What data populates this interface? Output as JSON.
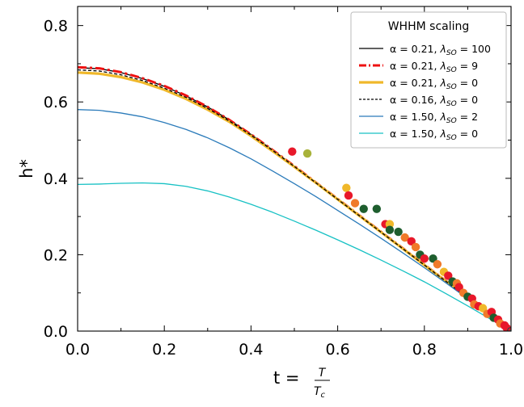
{
  "chart_data": {
    "type": "line",
    "xlabel": "t = ",
    "xlabel_fraction": {
      "numerator": "T",
      "denominator": "T",
      "denominator_subscript": "c"
    },
    "ylabel": "h*",
    "xlim": [
      0.0,
      1.0
    ],
    "ylim": [
      0.0,
      0.85
    ],
    "x_ticks": [
      0.0,
      0.2,
      0.4,
      0.6,
      0.8,
      1.0
    ],
    "x_tick_labels": [
      "0.0",
      "0.2",
      "0.4",
      "0.6",
      "0.8",
      "1.0"
    ],
    "y_ticks": [
      0.0,
      0.2,
      0.4,
      0.6,
      0.8
    ],
    "y_tick_labels": [
      "0.0",
      "0.2",
      "0.4",
      "0.6",
      "0.8"
    ],
    "grid": false,
    "legend": {
      "title": "WHHM scaling",
      "placement": "top-right"
    },
    "series": [
      {
        "name": "α = 0.21, λ_SO = 100",
        "alpha_text": "α = 0.21, ",
        "lambda_text": "λ",
        "sub_text": "SO",
        "value_text": " = 100",
        "color": "#000000",
        "style": "solid",
        "x": [
          0.0,
          0.05,
          0.1,
          0.15,
          0.2,
          0.25,
          0.3,
          0.35,
          0.4,
          0.45,
          0.5,
          0.55,
          0.6,
          0.65,
          0.7,
          0.75,
          0.8,
          0.85,
          0.9,
          0.95,
          1.0
        ],
        "y": [
          0.69,
          0.687,
          0.677,
          0.661,
          0.641,
          0.616,
          0.587,
          0.553,
          0.515,
          0.474,
          0.432,
          0.389,
          0.346,
          0.303,
          0.26,
          0.217,
          0.174,
          0.131,
          0.088,
          0.044,
          0.0
        ]
      },
      {
        "name": "α = 0.21, λ_SO = 9",
        "alpha_text": "α = 0.21, ",
        "lambda_text": "λ",
        "sub_text": "SO",
        "value_text": " = 9",
        "color": "#ee1111",
        "style": "dashdot",
        "x": [
          0.0,
          0.05,
          0.1,
          0.15,
          0.2,
          0.25,
          0.3,
          0.35,
          0.4,
          0.45,
          0.5,
          0.55,
          0.6,
          0.65,
          0.7,
          0.75,
          0.8,
          0.85,
          0.9,
          0.95,
          1.0
        ],
        "y": [
          0.691,
          0.688,
          0.678,
          0.662,
          0.642,
          0.617,
          0.587,
          0.553,
          0.515,
          0.474,
          0.432,
          0.389,
          0.346,
          0.303,
          0.26,
          0.217,
          0.174,
          0.131,
          0.088,
          0.044,
          0.0
        ]
      },
      {
        "name": "α = 0.21, λ_SO = 0",
        "alpha_text": "α = 0.21, ",
        "lambda_text": "λ",
        "sub_text": "SO",
        "value_text": " = 0",
        "color": "#f0b82a",
        "style": "thick",
        "x": [
          0.0,
          0.05,
          0.1,
          0.15,
          0.2,
          0.25,
          0.3,
          0.35,
          0.4,
          0.45,
          0.5,
          0.55,
          0.6,
          0.65,
          0.7,
          0.75,
          0.8,
          0.85,
          0.9,
          0.95,
          1.0
        ],
        "y": [
          0.677,
          0.674,
          0.665,
          0.651,
          0.632,
          0.608,
          0.58,
          0.548,
          0.511,
          0.471,
          0.43,
          0.388,
          0.345,
          0.302,
          0.259,
          0.216,
          0.173,
          0.13,
          0.087,
          0.044,
          0.0
        ]
      },
      {
        "name": "α = 0.16, λ_SO = 0",
        "alpha_text": "α = 0.16, ",
        "lambda_text": "λ",
        "sub_text": "SO",
        "value_text": " = 0",
        "color": "#000000",
        "style": "dashed",
        "x": [
          0.0,
          0.05,
          0.1,
          0.15,
          0.2,
          0.25,
          0.3,
          0.35,
          0.4,
          0.45,
          0.5,
          0.55,
          0.6,
          0.65,
          0.7,
          0.75,
          0.8,
          0.85,
          0.9,
          0.95,
          1.0
        ],
        "y": [
          0.684,
          0.681,
          0.671,
          0.656,
          0.636,
          0.612,
          0.583,
          0.55,
          0.513,
          0.473,
          0.431,
          0.388,
          0.345,
          0.302,
          0.259,
          0.216,
          0.173,
          0.13,
          0.087,
          0.044,
          0.0
        ]
      },
      {
        "name": "α = 1.50, λ_SO = 2",
        "alpha_text": "α = 1.50, ",
        "lambda_text": "λ",
        "sub_text": "SO",
        "value_text": " = 2",
        "color": "#2b7bba",
        "style": "solid",
        "x": [
          0.0,
          0.05,
          0.1,
          0.15,
          0.2,
          0.25,
          0.3,
          0.35,
          0.4,
          0.45,
          0.5,
          0.55,
          0.6,
          0.65,
          0.7,
          0.75,
          0.8,
          0.85,
          0.9,
          0.95,
          1.0
        ],
        "y": [
          0.58,
          0.578,
          0.571,
          0.561,
          0.546,
          0.528,
          0.506,
          0.48,
          0.451,
          0.419,
          0.386,
          0.352,
          0.316,
          0.28,
          0.243,
          0.205,
          0.166,
          0.126,
          0.085,
          0.043,
          0.0
        ]
      },
      {
        "name": "α = 1.50, λ_SO = 0",
        "alpha_text": "α = 1.50, ",
        "lambda_text": "λ",
        "sub_text": "SO",
        "value_text": " = 0",
        "color": "#17c1c4",
        "style": "solid",
        "x": [
          0.0,
          0.05,
          0.1,
          0.15,
          0.2,
          0.25,
          0.3,
          0.35,
          0.4,
          0.45,
          0.5,
          0.55,
          0.6,
          0.65,
          0.7,
          0.75,
          0.8,
          0.85,
          0.9,
          0.95,
          1.0
        ],
        "y": [
          0.384,
          0.385,
          0.387,
          0.388,
          0.386,
          0.379,
          0.367,
          0.351,
          0.332,
          0.311,
          0.288,
          0.264,
          0.239,
          0.213,
          0.186,
          0.158,
          0.129,
          0.098,
          0.066,
          0.033,
          0.0
        ]
      }
    ],
    "points": [
      {
        "x": 0.495,
        "y": 0.47,
        "color": "#e8182a"
      },
      {
        "x": 0.53,
        "y": 0.465,
        "color": "#a8b23a"
      },
      {
        "x": 0.62,
        "y": 0.375,
        "color": "#f0b82a"
      },
      {
        "x": 0.625,
        "y": 0.355,
        "color": "#e8182a"
      },
      {
        "x": 0.64,
        "y": 0.335,
        "color": "#f07a2a"
      },
      {
        "x": 0.66,
        "y": 0.32,
        "color": "#1e5e2e"
      },
      {
        "x": 0.69,
        "y": 0.32,
        "color": "#1e5e2e"
      },
      {
        "x": 0.71,
        "y": 0.28,
        "color": "#e8182a"
      },
      {
        "x": 0.72,
        "y": 0.28,
        "color": "#f0b82a"
      },
      {
        "x": 0.72,
        "y": 0.265,
        "color": "#1e5e2e"
      },
      {
        "x": 0.74,
        "y": 0.26,
        "color": "#1e5e2e"
      },
      {
        "x": 0.755,
        "y": 0.245,
        "color": "#f07a2a"
      },
      {
        "x": 0.77,
        "y": 0.235,
        "color": "#e8182a"
      },
      {
        "x": 0.78,
        "y": 0.22,
        "color": "#f07a2a"
      },
      {
        "x": 0.79,
        "y": 0.2,
        "color": "#1e5e2e"
      },
      {
        "x": 0.8,
        "y": 0.19,
        "color": "#e8182a"
      },
      {
        "x": 0.82,
        "y": 0.19,
        "color": "#1e5e2e"
      },
      {
        "x": 0.83,
        "y": 0.175,
        "color": "#f07a2a"
      },
      {
        "x": 0.845,
        "y": 0.155,
        "color": "#f0b82a"
      },
      {
        "x": 0.855,
        "y": 0.145,
        "color": "#e8182a"
      },
      {
        "x": 0.865,
        "y": 0.13,
        "color": "#1e5e2e"
      },
      {
        "x": 0.875,
        "y": 0.125,
        "color": "#f07a2a"
      },
      {
        "x": 0.88,
        "y": 0.115,
        "color": "#e8182a"
      },
      {
        "x": 0.89,
        "y": 0.1,
        "color": "#f07a2a"
      },
      {
        "x": 0.9,
        "y": 0.09,
        "color": "#1e5e2e"
      },
      {
        "x": 0.91,
        "y": 0.085,
        "color": "#e8182a"
      },
      {
        "x": 0.915,
        "y": 0.07,
        "color": "#f07a2a"
      },
      {
        "x": 0.925,
        "y": 0.065,
        "color": "#e8182a"
      },
      {
        "x": 0.935,
        "y": 0.06,
        "color": "#f0b82a"
      },
      {
        "x": 0.945,
        "y": 0.045,
        "color": "#f07a2a"
      },
      {
        "x": 0.955,
        "y": 0.05,
        "color": "#e8182a"
      },
      {
        "x": 0.96,
        "y": 0.035,
        "color": "#1e5e2e"
      },
      {
        "x": 0.97,
        "y": 0.03,
        "color": "#e8182a"
      },
      {
        "x": 0.975,
        "y": 0.02,
        "color": "#f07a2a"
      },
      {
        "x": 0.985,
        "y": 0.015,
        "color": "#e8182a"
      },
      {
        "x": 0.99,
        "y": 0.008,
        "color": "#e8182a"
      }
    ]
  }
}
